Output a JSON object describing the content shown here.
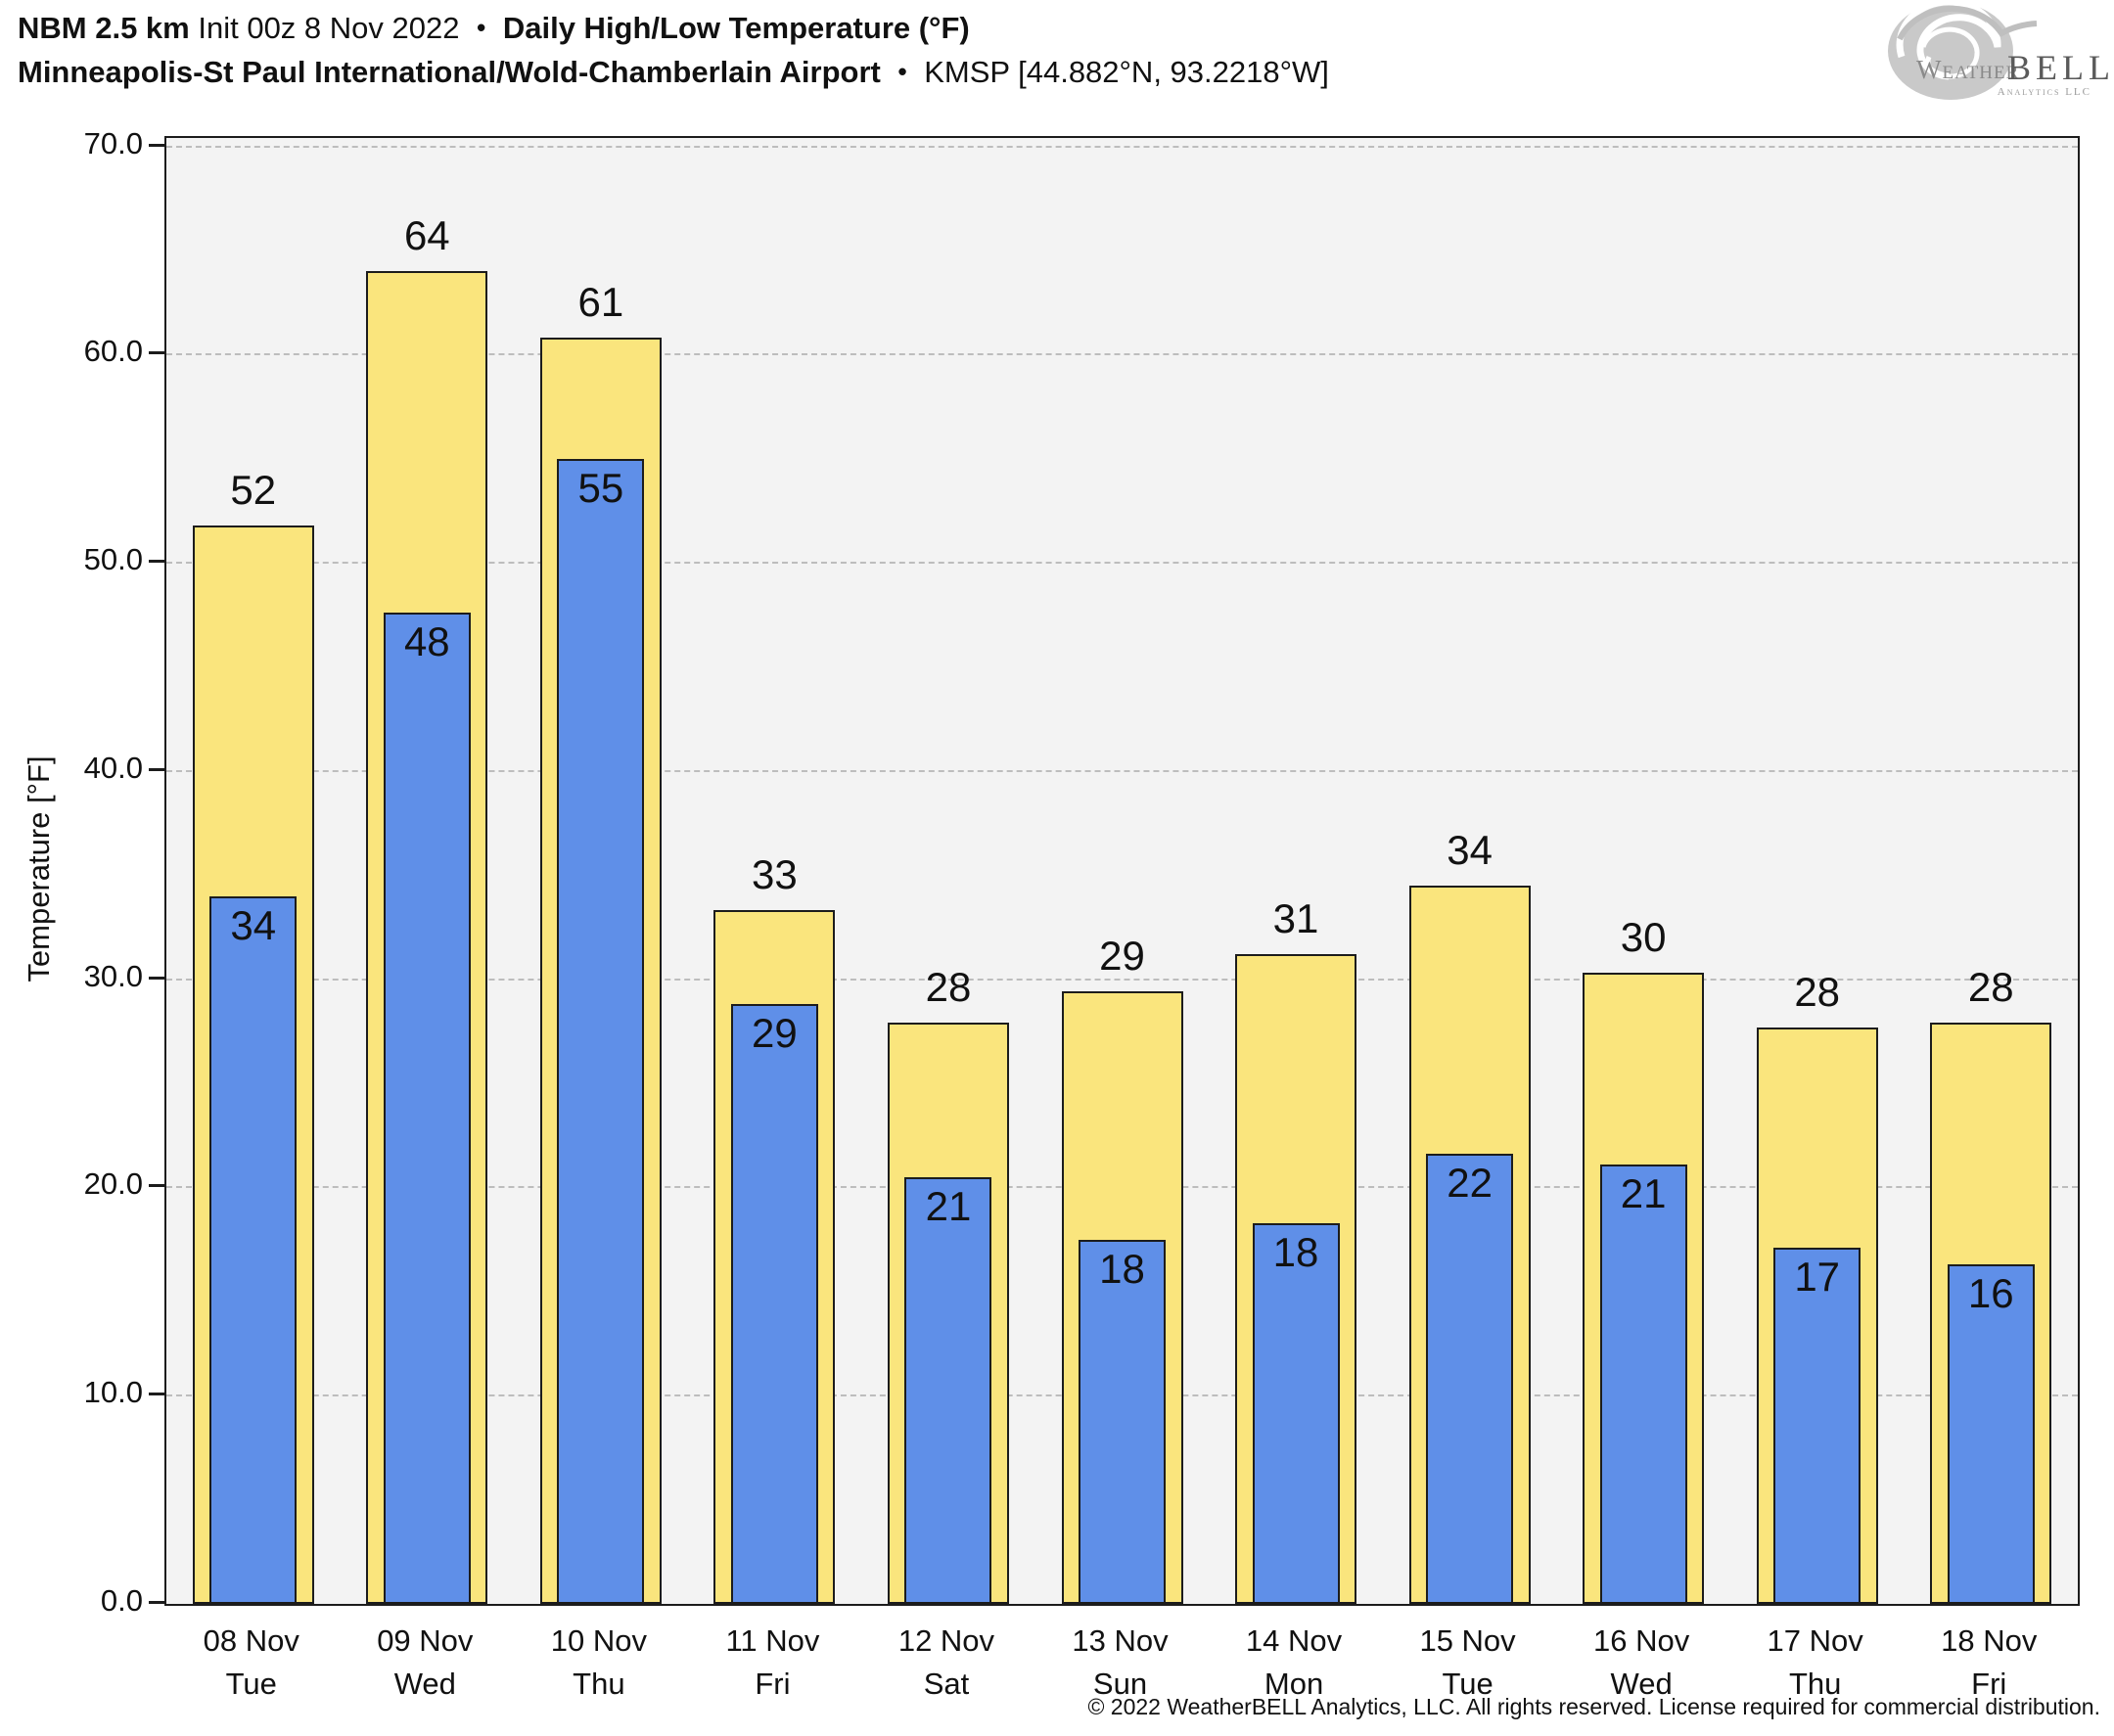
{
  "header": {
    "model": "NBM 2.5 km",
    "init": "Init 00z 8 Nov 2022",
    "bullet": "•",
    "product": "Daily High/Low Temperature (°F)",
    "station": "Minneapolis-St Paul International/Wold-Chamberlain Airport",
    "station_id": "KMSP [44.882°N, 93.2218°W]"
  },
  "logo": {
    "brand_weather": "Weather",
    "brand_bell": "BELL",
    "tagline": "Analytics LLC"
  },
  "chart_data": {
    "type": "bar",
    "title": "NBM 2.5 km Init 00z 8 Nov 2022 • Daily High/Low Temperature (°F)",
    "subtitle": "Minneapolis-St Paul International/Wold-Chamberlain Airport • KMSP [44.882°N, 93.2218°W]",
    "xlabel": "",
    "ylabel": "Temperature [°F]",
    "ylim": [
      0,
      70.4
    ],
    "yticks": [
      0,
      10,
      20,
      30,
      40,
      50,
      60,
      70
    ],
    "grid": "horizontal, dash-dot, every 10°F",
    "legend_position": "none",
    "categories": [
      "08 Nov",
      "09 Nov",
      "10 Nov",
      "11 Nov",
      "12 Nov",
      "13 Nov",
      "14 Nov",
      "15 Nov",
      "16 Nov",
      "17 Nov",
      "18 Nov"
    ],
    "weekdays": [
      "Tue",
      "Wed",
      "Thu",
      "Fri",
      "Sat",
      "Sun",
      "Mon",
      "Tue",
      "Wed",
      "Thu",
      "Fri"
    ],
    "series": [
      {
        "name": "Daily High",
        "color": "#FAE57D",
        "values": [
          52,
          64,
          61,
          33,
          28,
          29,
          31,
          34,
          30,
          28,
          28
        ],
        "bar_heights": [
          51.8,
          64.0,
          60.8,
          33.3,
          27.9,
          29.4,
          31.2,
          34.5,
          30.3,
          27.7,
          27.9
        ]
      },
      {
        "name": "Daily Low",
        "color": "#5F8FE8",
        "values": [
          34,
          48,
          55,
          29,
          21,
          18,
          18,
          22,
          21,
          17,
          16
        ],
        "bar_heights": [
          34.0,
          47.6,
          55.0,
          28.8,
          20.5,
          17.5,
          18.3,
          21.6,
          21.1,
          17.1,
          16.3
        ]
      }
    ]
  },
  "footer": {
    "copyright": "© 2022 WeatherBELL Analytics, LLC. All rights reserved. License required for commercial distribution."
  },
  "colors": {
    "high_fill": "#FAE57D",
    "low_fill": "#5F8FE8",
    "bar_border": "#1c1c1c",
    "plot_bg": "#F3F3F3",
    "grid": "#BDBDBD",
    "axis": "#1c1c1c",
    "logo_gray": "#A9A9A9"
  }
}
